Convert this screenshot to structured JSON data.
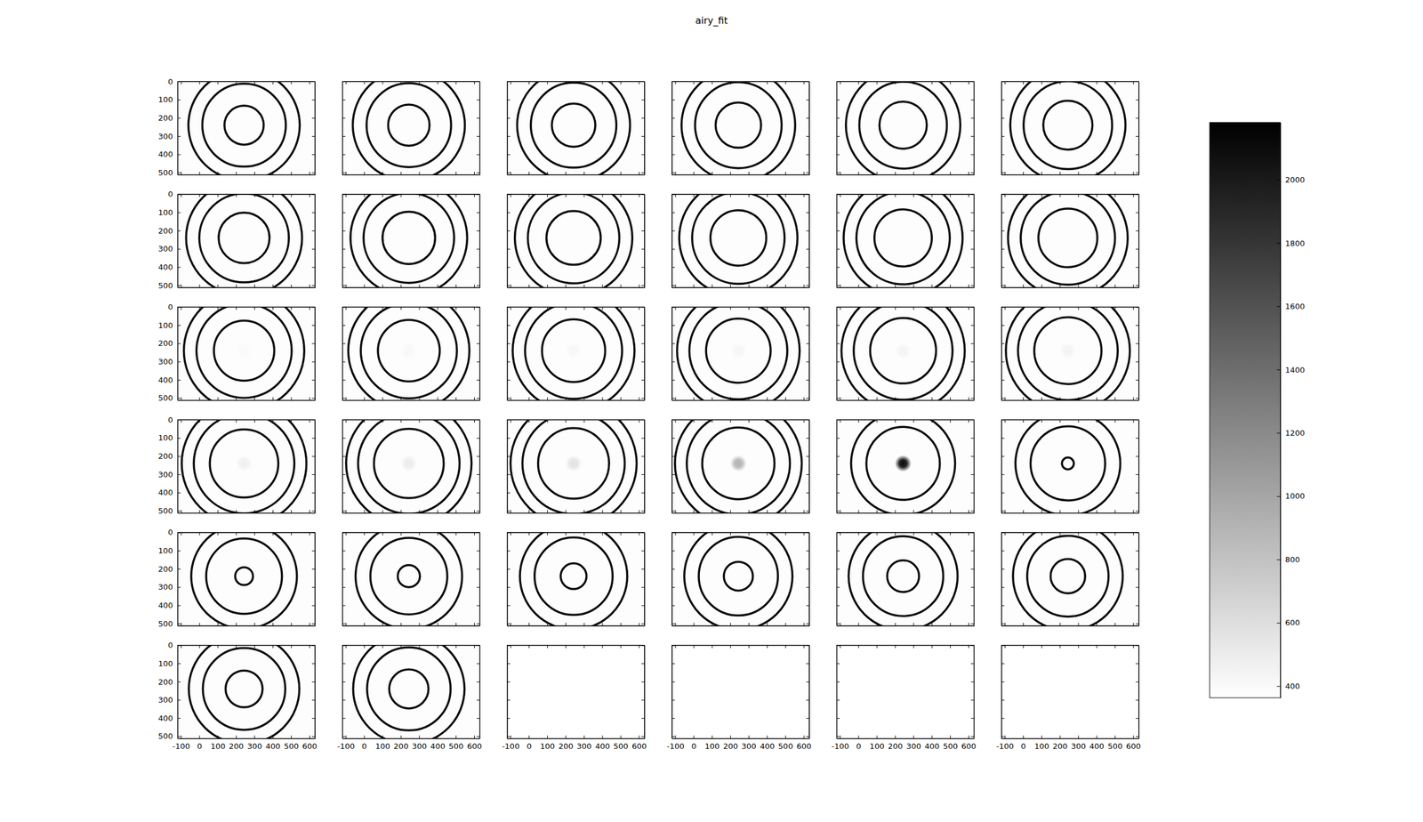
{
  "chart_data": {
    "type": "image_grid",
    "title": "airy_fit",
    "xlim": [
      -118,
      630
    ],
    "ylim": [
      512,
      0
    ],
    "xticks": [
      -100,
      0,
      100,
      200,
      300,
      400,
      500,
      600
    ],
    "yticks": [
      0,
      100,
      200,
      300,
      400,
      500
    ],
    "center": [
      244,
      240
    ],
    "background": 380,
    "colorbar": {
      "range": [
        363,
        2181
      ],
      "ticks": [
        400,
        600,
        800,
        1000,
        1200,
        1400,
        1600,
        1800,
        2000
      ]
    },
    "panels": [
      {
        "radii": [
          107.0,
          227.5,
          303.4
        ],
        "peaks": [
          2100,
          2100,
          2100
        ],
        "spot": null
      },
      {
        "radii": [
          112.9,
          230.3,
          305.5
        ],
        "peaks": [
          2100,
          2100,
          2100
        ],
        "spot": null
      },
      {
        "radii": [
          118.5,
          233.1,
          307.7
        ],
        "peaks": [
          2100,
          2100,
          2100
        ],
        "spot": null
      },
      {
        "radii": [
          123.9,
          235.9,
          309.8
        ],
        "peaks": [
          2100,
          2100,
          2100
        ],
        "spot": null
      },
      {
        "radii": [
          129.0,
          238.6,
          311.8
        ],
        "peaks": [
          2100,
          2100,
          2100
        ],
        "spot": null
      },
      {
        "radii": [
          134.0,
          241.3,
          313.9
        ],
        "peaks": [
          2100,
          2100,
          2100
        ],
        "spot": null
      },
      {
        "radii": [
          138.7,
          244.0,
          316.0
        ],
        "peaks": [
          2100,
          2100,
          2100
        ],
        "spot": null
      },
      {
        "radii": [
          143.3,
          246.7,
          318.0
        ],
        "peaks": [
          2100,
          2100,
          2100
        ],
        "spot": null
      },
      {
        "radii": [
          147.8,
          249.3,
          320.1
        ],
        "peaks": [
          2100,
          2100,
          2100
        ],
        "spot": null
      },
      {
        "radii": [
          152.1,
          251.9,
          322.1
        ],
        "peaks": [
          2100,
          2100,
          2100
        ],
        "spot": null
      },
      {
        "radii": [
          156.4,
          254.5,
          324.1
        ],
        "peaks": [
          2100,
          2100,
          2100
        ],
        "spot": null
      },
      {
        "radii": [
          160.5,
          257.0,
          326.1
        ],
        "peaks": [
          2100,
          2100,
          2100
        ],
        "spot": null
      },
      {
        "radii": [
          164.5,
          259.5,
          328.1
        ],
        "peaks": [
          2100,
          2100,
          2100
        ],
        "spot": 400
      },
      {
        "radii": [
          168.4,
          262.0,
          330.1
        ],
        "peaks": [
          2100,
          2100,
          2100
        ],
        "spot": 410
      },
      {
        "radii": [
          172.2,
          264.5,
          332.0
        ],
        "peaks": [
          2100,
          2100,
          2100
        ],
        "spot": 420
      },
      {
        "radii": [
          175.9,
          266.9,
          334.0
        ],
        "peaks": [
          2100,
          2100,
          2100
        ],
        "spot": 430
      },
      {
        "radii": [
          179.6,
          269.3,
          335.9
        ],
        "peaks": [
          2100,
          2100,
          2100
        ],
        "spot": 440
      },
      {
        "radii": [
          183.2,
          271.8,
          337.9
        ],
        "peaks": [
          2100,
          2100,
          2100
        ],
        "spot": 450
      },
      {
        "radii": [
          186.7,
          274.1,
          339.8
        ],
        "peaks": [
          2100,
          2100,
          2100
        ],
        "spot": 470
      },
      {
        "radii": [
          190.1,
          276.5,
          341.7
        ],
        "peaks": [
          2100,
          2100,
          2100
        ],
        "spot": 500
      },
      {
        "radii": [
          193.5,
          278.8,
          343.6
        ],
        "peaks": [
          2100,
          2100,
          2100
        ],
        "spot": 560
      },
      {
        "radii": [
          196.8,
          281.2,
          345.5
        ],
        "peaks": [
          2100,
          2100,
          2100
        ],
        "spot": 900
      },
      {
        "radii": [
          200.1,
          283.5
        ],
        "peaks": [
          2100,
          2100
        ],
        "spot": 2100
      },
      {
        "radii": [
          32.4,
          203.3,
          285.7
        ],
        "peaks": [
          2100,
          2100,
          2100
        ],
        "spot": null
      },
      {
        "radii": [
          48.5,
          206.5,
          288.0
        ],
        "peaks": [
          2100,
          2100,
          2100
        ],
        "spot": null
      },
      {
        "radii": [
          60.4,
          209.6,
          290.3
        ],
        "peaks": [
          2100,
          2100,
          2100
        ],
        "spot": null
      },
      {
        "radii": [
          70.3,
          212.7,
          292.5
        ],
        "peaks": [
          2100,
          2100,
          2100
        ],
        "spot": null
      },
      {
        "radii": [
          79.1,
          215.8,
          294.7
        ],
        "peaks": [
          2100,
          2100,
          2100
        ],
        "spot": null
      },
      {
        "radii": [
          86.9,
          218.7,
          296.9
        ],
        "peaks": [
          2100,
          2100,
          2100
        ],
        "spot": null
      },
      {
        "radii": [
          94.1,
          221.7,
          299.1
        ],
        "peaks": [
          2100,
          2100,
          2100
        ],
        "spot": null
      },
      {
        "radii": [
          100.7,
          224.6,
          301.2
        ],
        "peaks": [
          2100,
          2100,
          2100
        ],
        "spot": null
      },
      {
        "radii": [
          107.0,
          227.5,
          303.4
        ],
        "peaks": [
          2100,
          2100,
          2100
        ],
        "spot": null
      }
    ]
  }
}
